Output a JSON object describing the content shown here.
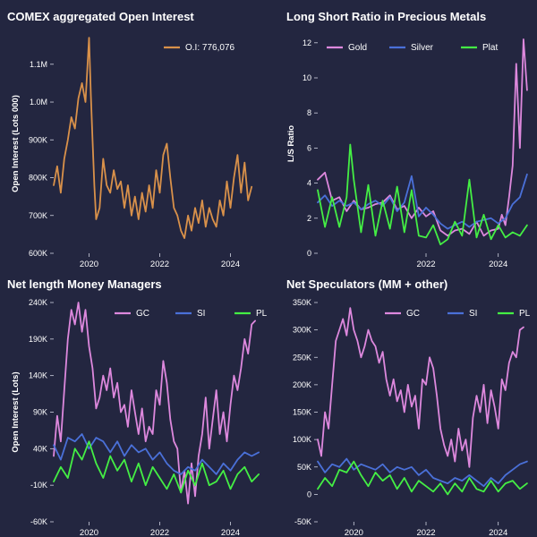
{
  "colors": {
    "background": "#232640",
    "text": "#ffffff",
    "oi": "#d9914a",
    "gold": "#dd88dd",
    "silver": "#4a70d8",
    "plat": "#44ee44"
  },
  "chart_data": [
    {
      "type": "line",
      "title": "COMEX aggregated Open Interest",
      "xlabel": "",
      "ylabel": "Open Interest (Lots 000)",
      "xlim": [
        2019.0,
        2024.95
      ],
      "ylim": [
        600,
        1180
      ],
      "x_ticks": [
        2020,
        2022,
        2024
      ],
      "x_tick_labels": [
        "2020",
        "2022",
        "2024"
      ],
      "y_ticks": [
        600,
        700,
        800,
        900,
        1000,
        1100
      ],
      "y_tick_labels": [
        "600K",
        "700K",
        "800K",
        "900K",
        "1.0M",
        "1.1M"
      ],
      "legend_position": "top-right",
      "series": [
        {
          "name": "O.I:  776,076",
          "color_key": "oi",
          "x": [
            2019.0,
            2019.1,
            2019.2,
            2019.3,
            2019.4,
            2019.5,
            2019.6,
            2019.7,
            2019.8,
            2019.9,
            2020.0,
            2020.05,
            2020.1,
            2020.15,
            2020.2,
            2020.3,
            2020.4,
            2020.5,
            2020.6,
            2020.7,
            2020.8,
            2020.9,
            2021.0,
            2021.1,
            2021.2,
            2021.3,
            2021.4,
            2021.5,
            2021.6,
            2021.7,
            2021.8,
            2021.9,
            2022.0,
            2022.1,
            2022.2,
            2022.3,
            2022.4,
            2022.5,
            2022.6,
            2022.7,
            2022.8,
            2022.9,
            2023.0,
            2023.1,
            2023.2,
            2023.3,
            2023.4,
            2023.5,
            2023.6,
            2023.7,
            2023.8,
            2023.9,
            2024.0,
            2024.1,
            2024.2,
            2024.3,
            2024.4,
            2024.5,
            2024.6
          ],
          "y": [
            780,
            830,
            760,
            850,
            900,
            960,
            930,
            1010,
            1050,
            1000,
            1170,
            1020,
            900,
            780,
            690,
            720,
            850,
            780,
            760,
            820,
            770,
            790,
            720,
            780,
            700,
            750,
            690,
            760,
            710,
            780,
            720,
            820,
            760,
            860,
            890,
            800,
            720,
            700,
            660,
            640,
            700,
            660,
            720,
            680,
            740,
            670,
            720,
            690,
            670,
            740,
            700,
            790,
            720,
            800,
            860,
            760,
            840,
            740,
            776
          ]
        }
      ]
    },
    {
      "type": "line",
      "title": "Long Short Ratio in Precious Metals",
      "xlabel": "",
      "ylabel": "L/S Ratio",
      "xlim": [
        2019.0,
        2024.95
      ],
      "ylim": [
        0,
        12.5
      ],
      "x_ticks": [
        2022,
        2024
      ],
      "x_tick_labels": [
        "2022",
        "2024"
      ],
      "y_ticks": [
        0,
        2,
        4,
        6,
        8,
        10,
        12
      ],
      "y_tick_labels": [
        "0",
        "2",
        "4",
        "6",
        "8",
        "10",
        "12"
      ],
      "legend_position": "top",
      "series": [
        {
          "name": "Gold",
          "color_key": "gold",
          "x": [
            2019.0,
            2019.2,
            2019.4,
            2019.6,
            2019.8,
            2020.0,
            2020.2,
            2020.4,
            2020.6,
            2020.8,
            2021.0,
            2021.2,
            2021.4,
            2021.6,
            2021.8,
            2022.0,
            2022.2,
            2022.4,
            2022.6,
            2022.8,
            2023.0,
            2023.2,
            2023.4,
            2023.6,
            2023.8,
            2024.0,
            2024.1,
            2024.2,
            2024.3,
            2024.4,
            2024.5,
            2024.6,
            2024.7,
            2024.8
          ],
          "y": [
            4.2,
            4.6,
            3.0,
            3.2,
            2.4,
            3.0,
            2.5,
            2.6,
            2.8,
            2.9,
            3.3,
            2.5,
            2.7,
            2.0,
            2.6,
            2.1,
            2.4,
            1.3,
            1.0,
            1.3,
            1.4,
            1.1,
            1.8,
            1.0,
            1.3,
            1.4,
            2.2,
            1.6,
            3.2,
            5.0,
            10.8,
            6.0,
            12.2,
            9.3
          ]
        },
        {
          "name": "Silver",
          "color_key": "silver",
          "x": [
            2019.0,
            2019.2,
            2019.4,
            2019.6,
            2019.8,
            2020.0,
            2020.2,
            2020.4,
            2020.6,
            2020.8,
            2021.0,
            2021.2,
            2021.4,
            2021.6,
            2021.8,
            2022.0,
            2022.2,
            2022.4,
            2022.6,
            2022.8,
            2023.0,
            2023.2,
            2023.4,
            2023.6,
            2023.8,
            2024.0,
            2024.2,
            2024.4,
            2024.6,
            2024.8
          ],
          "y": [
            2.9,
            3.3,
            2.7,
            3.0,
            2.7,
            2.9,
            2.5,
            2.8,
            3.0,
            2.7,
            3.2,
            2.4,
            2.9,
            4.4,
            2.1,
            2.6,
            2.2,
            1.7,
            1.4,
            1.6,
            1.8,
            1.5,
            1.8,
            1.9,
            2.0,
            1.7,
            2.0,
            2.8,
            3.2,
            4.5
          ]
        },
        {
          "name": "Plat",
          "color_key": "plat",
          "x": [
            2019.0,
            2019.2,
            2019.4,
            2019.6,
            2019.8,
            2019.9,
            2020.0,
            2020.2,
            2020.4,
            2020.6,
            2020.8,
            2021.0,
            2021.2,
            2021.4,
            2021.6,
            2021.8,
            2022.0,
            2022.2,
            2022.4,
            2022.6,
            2022.8,
            2023.0,
            2023.2,
            2023.4,
            2023.6,
            2023.8,
            2024.0,
            2024.2,
            2024.4,
            2024.6,
            2024.8
          ],
          "y": [
            3.6,
            1.5,
            3.2,
            1.5,
            3.2,
            6.2,
            4.2,
            1.2,
            3.9,
            1.0,
            3.0,
            1.4,
            3.8,
            1.2,
            3.6,
            1.0,
            0.9,
            1.6,
            0.5,
            0.8,
            1.8,
            1.0,
            4.2,
            0.9,
            2.2,
            0.8,
            1.6,
            0.9,
            1.2,
            1.0,
            1.6
          ]
        }
      ]
    },
    {
      "type": "line",
      "title": "Net length Money Managers",
      "xlabel": "",
      "ylabel": "Open Interest (Lots)",
      "xlim": [
        2019.0,
        2024.95
      ],
      "ylim": [
        -60,
        240
      ],
      "x_ticks": [
        2020,
        2022,
        2024
      ],
      "x_tick_labels": [
        "2020",
        "2022",
        "2024"
      ],
      "y_ticks": [
        -60,
        -10,
        40,
        90,
        140,
        190,
        240
      ],
      "y_tick_labels": [
        "-60K",
        "-10K",
        "40K",
        "90K",
        "140K",
        "190K",
        "240K"
      ],
      "legend_position": "top-right",
      "series": [
        {
          "name": "GC",
          "color_key": "gold",
          "x": [
            2019.0,
            2019.1,
            2019.2,
            2019.3,
            2019.4,
            2019.5,
            2019.6,
            2019.7,
            2019.8,
            2019.9,
            2020.0,
            2020.1,
            2020.2,
            2020.3,
            2020.4,
            2020.5,
            2020.6,
            2020.7,
            2020.8,
            2020.9,
            2021.0,
            2021.1,
            2021.2,
            2021.3,
            2021.4,
            2021.5,
            2021.6,
            2021.7,
            2021.8,
            2021.9,
            2022.0,
            2022.1,
            2022.2,
            2022.3,
            2022.4,
            2022.5,
            2022.6,
            2022.7,
            2022.8,
            2022.9,
            2023.0,
            2023.1,
            2023.2,
            2023.3,
            2023.4,
            2023.5,
            2023.6,
            2023.7,
            2023.8,
            2023.9,
            2024.0,
            2024.1,
            2024.2,
            2024.3,
            2024.4,
            2024.5,
            2024.6,
            2024.7
          ],
          "y": [
            30,
            85,
            50,
            120,
            190,
            230,
            210,
            240,
            200,
            230,
            180,
            150,
            95,
            110,
            140,
            120,
            150,
            110,
            130,
            90,
            100,
            70,
            120,
            90,
            60,
            95,
            50,
            70,
            60,
            120,
            100,
            160,
            130,
            80,
            50,
            40,
            -20,
            10,
            -35,
            20,
            -25,
            30,
            60,
            110,
            40,
            80,
            120,
            60,
            90,
            50,
            100,
            140,
            120,
            150,
            190,
            170,
            210,
            215
          ]
        },
        {
          "name": "SI",
          "color_key": "silver",
          "x": [
            2019.0,
            2019.2,
            2019.4,
            2019.6,
            2019.8,
            2020.0,
            2020.2,
            2020.4,
            2020.6,
            2020.8,
            2021.0,
            2021.2,
            2021.4,
            2021.6,
            2021.8,
            2022.0,
            2022.2,
            2022.4,
            2022.6,
            2022.8,
            2023.0,
            2023.2,
            2023.4,
            2023.6,
            2023.8,
            2024.0,
            2024.2,
            2024.4,
            2024.6,
            2024.8
          ],
          "y": [
            45,
            25,
            55,
            50,
            60,
            40,
            55,
            50,
            35,
            50,
            30,
            45,
            35,
            40,
            25,
            35,
            20,
            10,
            5,
            15,
            10,
            25,
            15,
            5,
            20,
            10,
            25,
            35,
            30,
            35
          ]
        },
        {
          "name": "PL",
          "color_key": "plat",
          "x": [
            2019.0,
            2019.2,
            2019.4,
            2019.6,
            2019.8,
            2020.0,
            2020.2,
            2020.4,
            2020.6,
            2020.8,
            2021.0,
            2021.2,
            2021.4,
            2021.6,
            2021.8,
            2022.0,
            2022.2,
            2022.4,
            2022.6,
            2022.8,
            2023.0,
            2023.2,
            2023.4,
            2023.6,
            2023.8,
            2024.0,
            2024.2,
            2024.4,
            2024.6,
            2024.8
          ],
          "y": [
            -5,
            15,
            0,
            40,
            25,
            50,
            20,
            0,
            30,
            10,
            25,
            -5,
            20,
            -10,
            15,
            0,
            -15,
            5,
            -20,
            10,
            -10,
            20,
            -10,
            -5,
            10,
            -15,
            5,
            15,
            -5,
            5
          ]
        }
      ]
    },
    {
      "type": "line",
      "title": "Net Speculators (MM + other)",
      "xlabel": "",
      "ylabel": "",
      "xlim": [
        2019.0,
        2024.95
      ],
      "ylim": [
        -50,
        350
      ],
      "x_ticks": [
        2020,
        2022,
        2024
      ],
      "x_tick_labels": [
        "2020",
        "2022",
        "2024"
      ],
      "y_ticks": [
        -50,
        0,
        50,
        100,
        150,
        200,
        250,
        300,
        350
      ],
      "y_tick_labels": [
        "-50K",
        "0",
        "50K",
        "100K",
        "150K",
        "200K",
        "250K",
        "300K",
        "350K"
      ],
      "legend_position": "top-right",
      "series": [
        {
          "name": "GC",
          "color_key": "gold",
          "x": [
            2019.0,
            2019.1,
            2019.2,
            2019.3,
            2019.4,
            2019.5,
            2019.6,
            2019.7,
            2019.8,
            2019.9,
            2020.0,
            2020.1,
            2020.2,
            2020.3,
            2020.4,
            2020.5,
            2020.6,
            2020.7,
            2020.8,
            2020.9,
            2021.0,
            2021.1,
            2021.2,
            2021.3,
            2021.4,
            2021.5,
            2021.6,
            2021.7,
            2021.8,
            2021.9,
            2022.0,
            2022.1,
            2022.2,
            2022.3,
            2022.4,
            2022.5,
            2022.6,
            2022.7,
            2022.8,
            2022.9,
            2023.0,
            2023.1,
            2023.2,
            2023.3,
            2023.4,
            2023.5,
            2023.6,
            2023.7,
            2023.8,
            2023.9,
            2024.0,
            2024.1,
            2024.2,
            2024.3,
            2024.4,
            2024.5,
            2024.6,
            2024.7
          ],
          "y": [
            100,
            70,
            150,
            120,
            200,
            280,
            300,
            320,
            290,
            340,
            300,
            280,
            250,
            270,
            300,
            280,
            270,
            240,
            260,
            210,
            180,
            210,
            170,
            190,
            150,
            200,
            160,
            180,
            120,
            210,
            200,
            250,
            230,
            180,
            120,
            90,
            70,
            100,
            60,
            120,
            80,
            100,
            50,
            140,
            180,
            150,
            200,
            130,
            190,
            160,
            120,
            210,
            190,
            240,
            260,
            250,
            300,
            305
          ]
        },
        {
          "name": "SI",
          "color_key": "silver",
          "x": [
            2019.0,
            2019.2,
            2019.4,
            2019.6,
            2019.8,
            2020.0,
            2020.2,
            2020.4,
            2020.6,
            2020.8,
            2021.0,
            2021.2,
            2021.4,
            2021.6,
            2021.8,
            2022.0,
            2022.2,
            2022.4,
            2022.6,
            2022.8,
            2023.0,
            2023.2,
            2023.4,
            2023.6,
            2023.8,
            2024.0,
            2024.2,
            2024.4,
            2024.6,
            2024.8
          ],
          "y": [
            60,
            40,
            55,
            50,
            65,
            45,
            55,
            50,
            45,
            55,
            40,
            50,
            45,
            50,
            35,
            45,
            30,
            25,
            20,
            30,
            25,
            35,
            25,
            15,
            30,
            20,
            35,
            45,
            55,
            60
          ]
        },
        {
          "name": "PL",
          "color_key": "plat",
          "x": [
            2019.0,
            2019.2,
            2019.4,
            2019.6,
            2019.8,
            2020.0,
            2020.2,
            2020.4,
            2020.6,
            2020.8,
            2021.0,
            2021.2,
            2021.4,
            2021.6,
            2021.8,
            2022.0,
            2022.2,
            2022.4,
            2022.6,
            2022.8,
            2023.0,
            2023.2,
            2023.4,
            2023.6,
            2023.8,
            2024.0,
            2024.2,
            2024.4,
            2024.6,
            2024.8
          ],
          "y": [
            10,
            30,
            15,
            45,
            40,
            60,
            35,
            15,
            40,
            25,
            35,
            10,
            30,
            5,
            25,
            15,
            5,
            20,
            0,
            20,
            5,
            30,
            10,
            5,
            25,
            5,
            20,
            25,
            10,
            20
          ]
        }
      ]
    }
  ]
}
